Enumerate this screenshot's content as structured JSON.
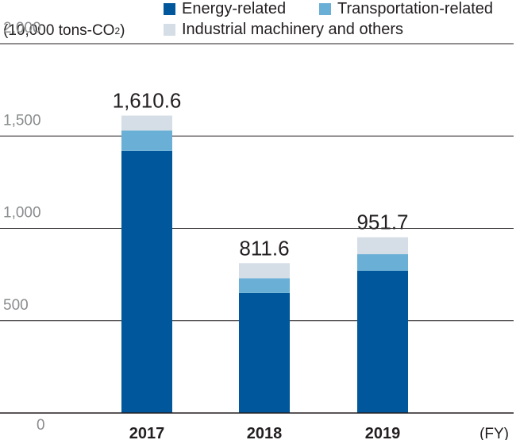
{
  "chart_data": {
    "type": "bar",
    "stacked": true,
    "unit_label": "(10,000 tons-CO",
    "unit_label_sub": "2",
    "unit_label_close": ")",
    "xlabel": "(FY)",
    "categories": [
      "2017",
      "2018",
      "2019"
    ],
    "ylim": [
      0,
      2000
    ],
    "yticks": [
      {
        "value": 0,
        "label": "0"
      },
      {
        "value": 500,
        "label": "500"
      },
      {
        "value": 1000,
        "label": "1,000"
      },
      {
        "value": 1500,
        "label": "1,500"
      },
      {
        "value": 2000,
        "label": "2,000"
      }
    ],
    "grid": true,
    "legend_position": "top",
    "series": [
      {
        "name": "Energy-related",
        "color": "#00579b",
        "values": [
          1420,
          650,
          770
        ]
      },
      {
        "name": "Transportation-related",
        "color": "#6aafd6",
        "values": [
          110,
          80,
          90
        ]
      },
      {
        "name": "Industrial machinery and others",
        "color": "#d5dee6",
        "values": [
          80.6,
          81.6,
          91.7
        ]
      }
    ],
    "totals": [
      "1,610.6",
      "811.6",
      "951.7"
    ]
  }
}
